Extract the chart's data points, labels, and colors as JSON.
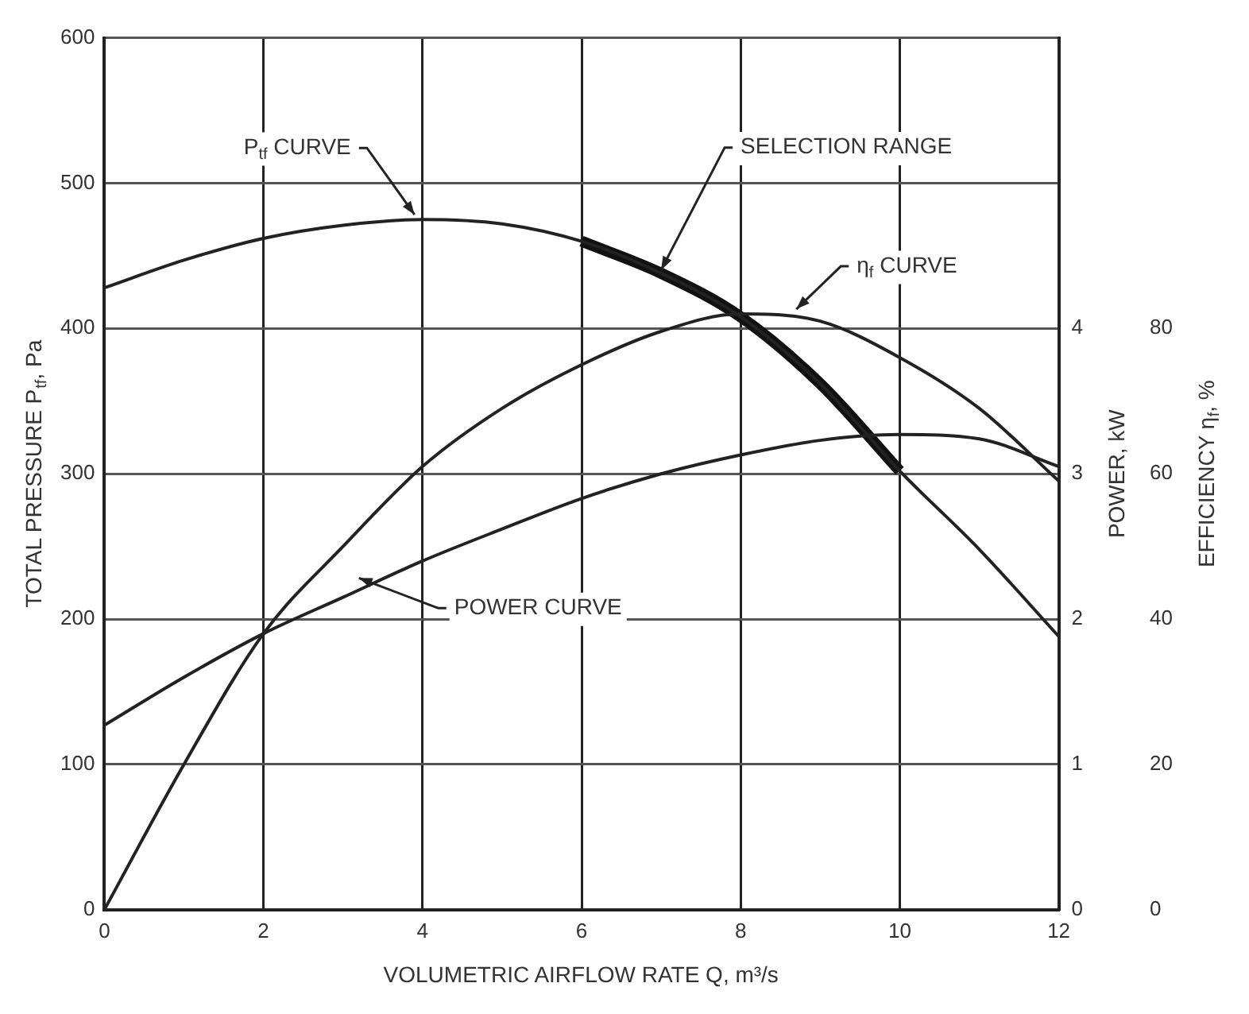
{
  "chart_data": {
    "type": "line",
    "xlabel": "VOLUMETRIC AIRFLOW RATE Q, m³/s",
    "ylabel": "TOTAL PRESSURE P$_{tf}$, Pa",
    "y2label": "POWER, kW",
    "y3label": "EFFICIENCY η$_{f}$, %",
    "x": [
      0,
      1,
      2,
      3,
      4,
      5,
      6,
      7,
      8,
      9,
      10,
      11,
      12
    ],
    "series": [
      {
        "color": "#222222",
        "values": [
          428,
          447,
          462,
          471,
          475,
          472,
          460,
          438,
          408,
          362,
          302,
          248,
          188
        ]
      },
      {
        "color": "#222222",
        "axis": "y3",
        "values": [
          0,
          20,
          38,
          50,
          61,
          69,
          75,
          79.6,
          82,
          81,
          76,
          69,
          59
        ]
      },
      {
        "color": "#222222",
        "axis": "y2",
        "values": [
          1.27,
          1.6,
          1.9,
          2.15,
          2.4,
          2.62,
          2.83,
          3.0,
          3.13,
          3.23,
          3.27,
          3.24,
          3.05
        ]
      },
      {
        "color": "#111111",
        "x": [
          6,
          7,
          8,
          9,
          10
        ],
        "values": [
          460,
          438,
          408,
          362,
          302
        ]
      }
    ],
    "annotations": [
      {
        "text": "P$_{tf}$ CURVE",
        "x": 3.9,
        "y": 475
      },
      {
        "text": "SELECTION RANGE",
        "x": 7,
        "y": 437
      },
      {
        "text": "η$_{f}$ CURVE",
        "x": 8.7,
        "y": 410
      },
      {
        "text": "POWER CURVE",
        "x": 3.2,
        "y": 225
      }
    ],
    "xlim": [
      0,
      12
    ],
    "xticks": [
      0,
      2,
      4,
      6,
      8,
      10,
      12
    ],
    "ylim": [
      0,
      600
    ],
    "yticks": [
      0,
      100,
      200,
      300,
      400,
      500,
      600
    ],
    "y2lim": [
      0,
      6
    ],
    "y2ticks": [
      0,
      1,
      2,
      3,
      4
    ],
    "y3lim": [
      0,
      120
    ],
    "y3ticks": [
      0,
      20,
      40,
      60,
      80
    ],
    "grid": true,
    "marker": "none",
    "line_style": "solid"
  }
}
